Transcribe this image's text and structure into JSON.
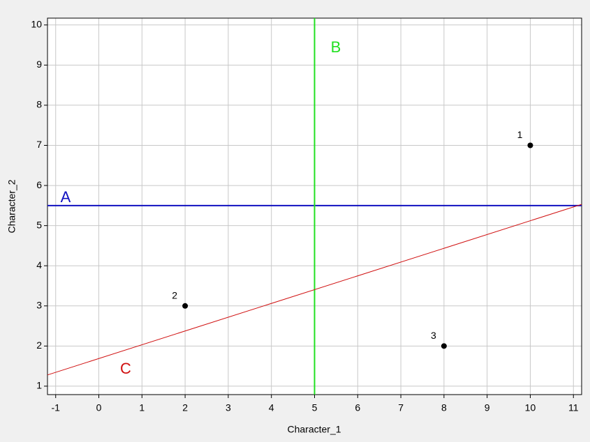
{
  "chart_data": {
    "type": "scatter",
    "x_label": "Character_1",
    "y_label": "Character_2",
    "xlim": [
      -1.19,
      11.19
    ],
    "ylim": [
      0.79,
      10.17
    ],
    "xticks": [
      -1,
      0,
      1,
      2,
      3,
      4,
      5,
      6,
      7,
      8,
      9,
      10,
      11
    ],
    "yticks": [
      1,
      2,
      3,
      4,
      5,
      6,
      7,
      8,
      9,
      10
    ],
    "grid": true,
    "points": {
      "color": "#000000",
      "x": [
        10,
        2,
        8
      ],
      "y": [
        7,
        3,
        2
      ],
      "labels": [
        "1",
        "2",
        "3"
      ]
    },
    "lines": [
      {
        "name": "A",
        "color": "#1010c0",
        "x": [
          -1.19,
          11.19
        ],
        "y": [
          5.5,
          5.5
        ]
      },
      {
        "name": "B",
        "color": "#20e020",
        "x": [
          5,
          5
        ],
        "y": [
          0.79,
          10.17
        ]
      },
      {
        "name": "C",
        "color": "#d01010",
        "x": [
          -1.19,
          11.19
        ],
        "y": [
          1.28,
          5.53
        ]
      }
    ]
  }
}
